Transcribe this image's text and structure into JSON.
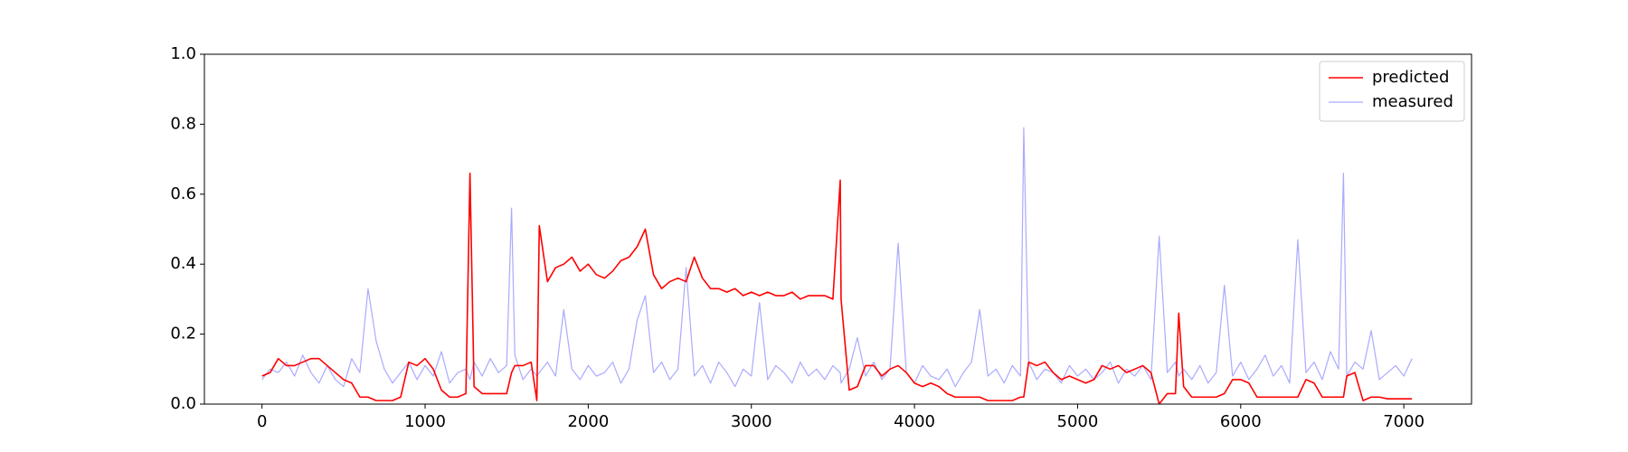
{
  "chart_data": {
    "type": "line",
    "x": [
      0,
      50,
      100,
      150,
      200,
      250,
      300,
      350,
      400,
      450,
      500,
      550,
      600,
      650,
      700,
      750,
      800,
      850,
      900,
      950,
      1000,
      1050,
      1100,
      1150,
      1200,
      1250,
      1275,
      1300,
      1350,
      1400,
      1450,
      1500,
      1530,
      1550,
      1600,
      1650,
      1685,
      1700,
      1750,
      1800,
      1850,
      1900,
      1950,
      2000,
      2050,
      2100,
      2150,
      2200,
      2250,
      2300,
      2350,
      2400,
      2450,
      2500,
      2550,
      2600,
      2650,
      2700,
      2750,
      2800,
      2850,
      2900,
      2950,
      3000,
      3050,
      3100,
      3150,
      3200,
      3250,
      3300,
      3350,
      3400,
      3450,
      3500,
      3545,
      3550,
      3600,
      3650,
      3700,
      3750,
      3800,
      3850,
      3900,
      3950,
      4000,
      4050,
      4100,
      4150,
      4200,
      4250,
      4300,
      4350,
      4400,
      4450,
      4500,
      4550,
      4600,
      4650,
      4670,
      4700,
      4750,
      4800,
      4850,
      4900,
      4950,
      5000,
      5050,
      5100,
      5150,
      5200,
      5250,
      5300,
      5350,
      5400,
      5450,
      5500,
      5550,
      5600,
      5620,
      5650,
      5700,
      5750,
      5800,
      5850,
      5900,
      5950,
      6000,
      6050,
      6100,
      6150,
      6200,
      6250,
      6300,
      6350,
      6400,
      6450,
      6500,
      6550,
      6600,
      6630,
      6650,
      6700,
      6750,
      6800,
      6850,
      6900,
      6950,
      7000,
      7050
    ],
    "series": [
      {
        "name": "predicted",
        "color": "#ff0000",
        "width": 1.6,
        "values": [
          0.08,
          0.09,
          0.13,
          0.11,
          0.11,
          0.12,
          0.13,
          0.13,
          0.11,
          0.09,
          0.07,
          0.06,
          0.02,
          0.02,
          0.01,
          0.01,
          0.01,
          0.02,
          0.12,
          0.11,
          0.13,
          0.1,
          0.04,
          0.02,
          0.02,
          0.03,
          0.66,
          0.05,
          0.03,
          0.03,
          0.03,
          0.03,
          0.09,
          0.11,
          0.11,
          0.12,
          0.01,
          0.51,
          0.35,
          0.39,
          0.4,
          0.42,
          0.38,
          0.4,
          0.37,
          0.36,
          0.38,
          0.41,
          0.42,
          0.45,
          0.5,
          0.37,
          0.33,
          0.35,
          0.36,
          0.35,
          0.42,
          0.36,
          0.33,
          0.33,
          0.32,
          0.33,
          0.31,
          0.32,
          0.31,
          0.32,
          0.31,
          0.31,
          0.32,
          0.3,
          0.31,
          0.31,
          0.31,
          0.3,
          0.64,
          0.3,
          0.04,
          0.05,
          0.11,
          0.11,
          0.08,
          0.1,
          0.11,
          0.09,
          0.06,
          0.05,
          0.06,
          0.05,
          0.03,
          0.02,
          0.02,
          0.02,
          0.02,
          0.01,
          0.01,
          0.01,
          0.01,
          0.02,
          0.02,
          0.12,
          0.11,
          0.12,
          0.09,
          0.07,
          0.08,
          0.07,
          0.06,
          0.07,
          0.11,
          0.1,
          0.11,
          0.09,
          0.1,
          0.11,
          0.09,
          0.0,
          0.03,
          0.03,
          0.26,
          0.05,
          0.02,
          0.02,
          0.02,
          0.02,
          0.03,
          0.07,
          0.07,
          0.06,
          0.02,
          0.02,
          0.02,
          0.02,
          0.02,
          0.02,
          0.07,
          0.06,
          0.02,
          0.02,
          0.02,
          0.02,
          0.08,
          0.09,
          0.01,
          0.02,
          0.02,
          0.015,
          0.015,
          0.015,
          0.015
        ]
      },
      {
        "name": "measured",
        "color": "#aaaaff",
        "width": 1.2,
        "values": [
          0.07,
          0.1,
          0.09,
          0.12,
          0.08,
          0.14,
          0.09,
          0.06,
          0.11,
          0.07,
          0.05,
          0.13,
          0.09,
          0.33,
          0.18,
          0.1,
          0.06,
          0.09,
          0.12,
          0.07,
          0.11,
          0.08,
          0.15,
          0.06,
          0.09,
          0.1,
          0.07,
          0.12,
          0.08,
          0.13,
          0.09,
          0.11,
          0.56,
          0.14,
          0.07,
          0.1,
          0.08,
          0.09,
          0.12,
          0.08,
          0.27,
          0.1,
          0.07,
          0.11,
          0.08,
          0.09,
          0.12,
          0.06,
          0.1,
          0.24,
          0.31,
          0.09,
          0.12,
          0.07,
          0.1,
          0.39,
          0.08,
          0.11,
          0.06,
          0.12,
          0.09,
          0.05,
          0.1,
          0.08,
          0.29,
          0.07,
          0.11,
          0.09,
          0.06,
          0.12,
          0.08,
          0.1,
          0.07,
          0.11,
          0.09,
          0.06,
          0.1,
          0.19,
          0.08,
          0.12,
          0.07,
          0.1,
          0.46,
          0.09,
          0.06,
          0.11,
          0.08,
          0.07,
          0.1,
          0.05,
          0.09,
          0.12,
          0.27,
          0.08,
          0.1,
          0.06,
          0.11,
          0.08,
          0.79,
          0.12,
          0.07,
          0.1,
          0.09,
          0.06,
          0.11,
          0.08,
          0.1,
          0.07,
          0.09,
          0.12,
          0.06,
          0.1,
          0.08,
          0.11,
          0.07,
          0.48,
          0.09,
          0.12,
          0.08,
          0.1,
          0.07,
          0.11,
          0.06,
          0.09,
          0.34,
          0.08,
          0.12,
          0.07,
          0.1,
          0.14,
          0.08,
          0.11,
          0.06,
          0.47,
          0.09,
          0.12,
          0.07,
          0.15,
          0.1,
          0.66,
          0.08,
          0.12,
          0.1,
          0.21,
          0.07,
          0.09,
          0.11,
          0.08,
          0.13
        ]
      }
    ],
    "xlim": [
      -353,
      7415
    ],
    "ylim": [
      0,
      1
    ],
    "xticks": [
      0,
      1000,
      2000,
      3000,
      4000,
      5000,
      6000,
      7000
    ],
    "yticks": [
      {
        "value": 0,
        "label": "0.0"
      },
      {
        "value": 0.2,
        "label": "0.2"
      },
      {
        "value": 0.4,
        "label": "0.4"
      },
      {
        "value": 0.6,
        "label": "0.6"
      },
      {
        "value": 0.8,
        "label": "0.8"
      },
      {
        "value": 1,
        "label": "1.0"
      }
    ],
    "legend": "upper right"
  }
}
